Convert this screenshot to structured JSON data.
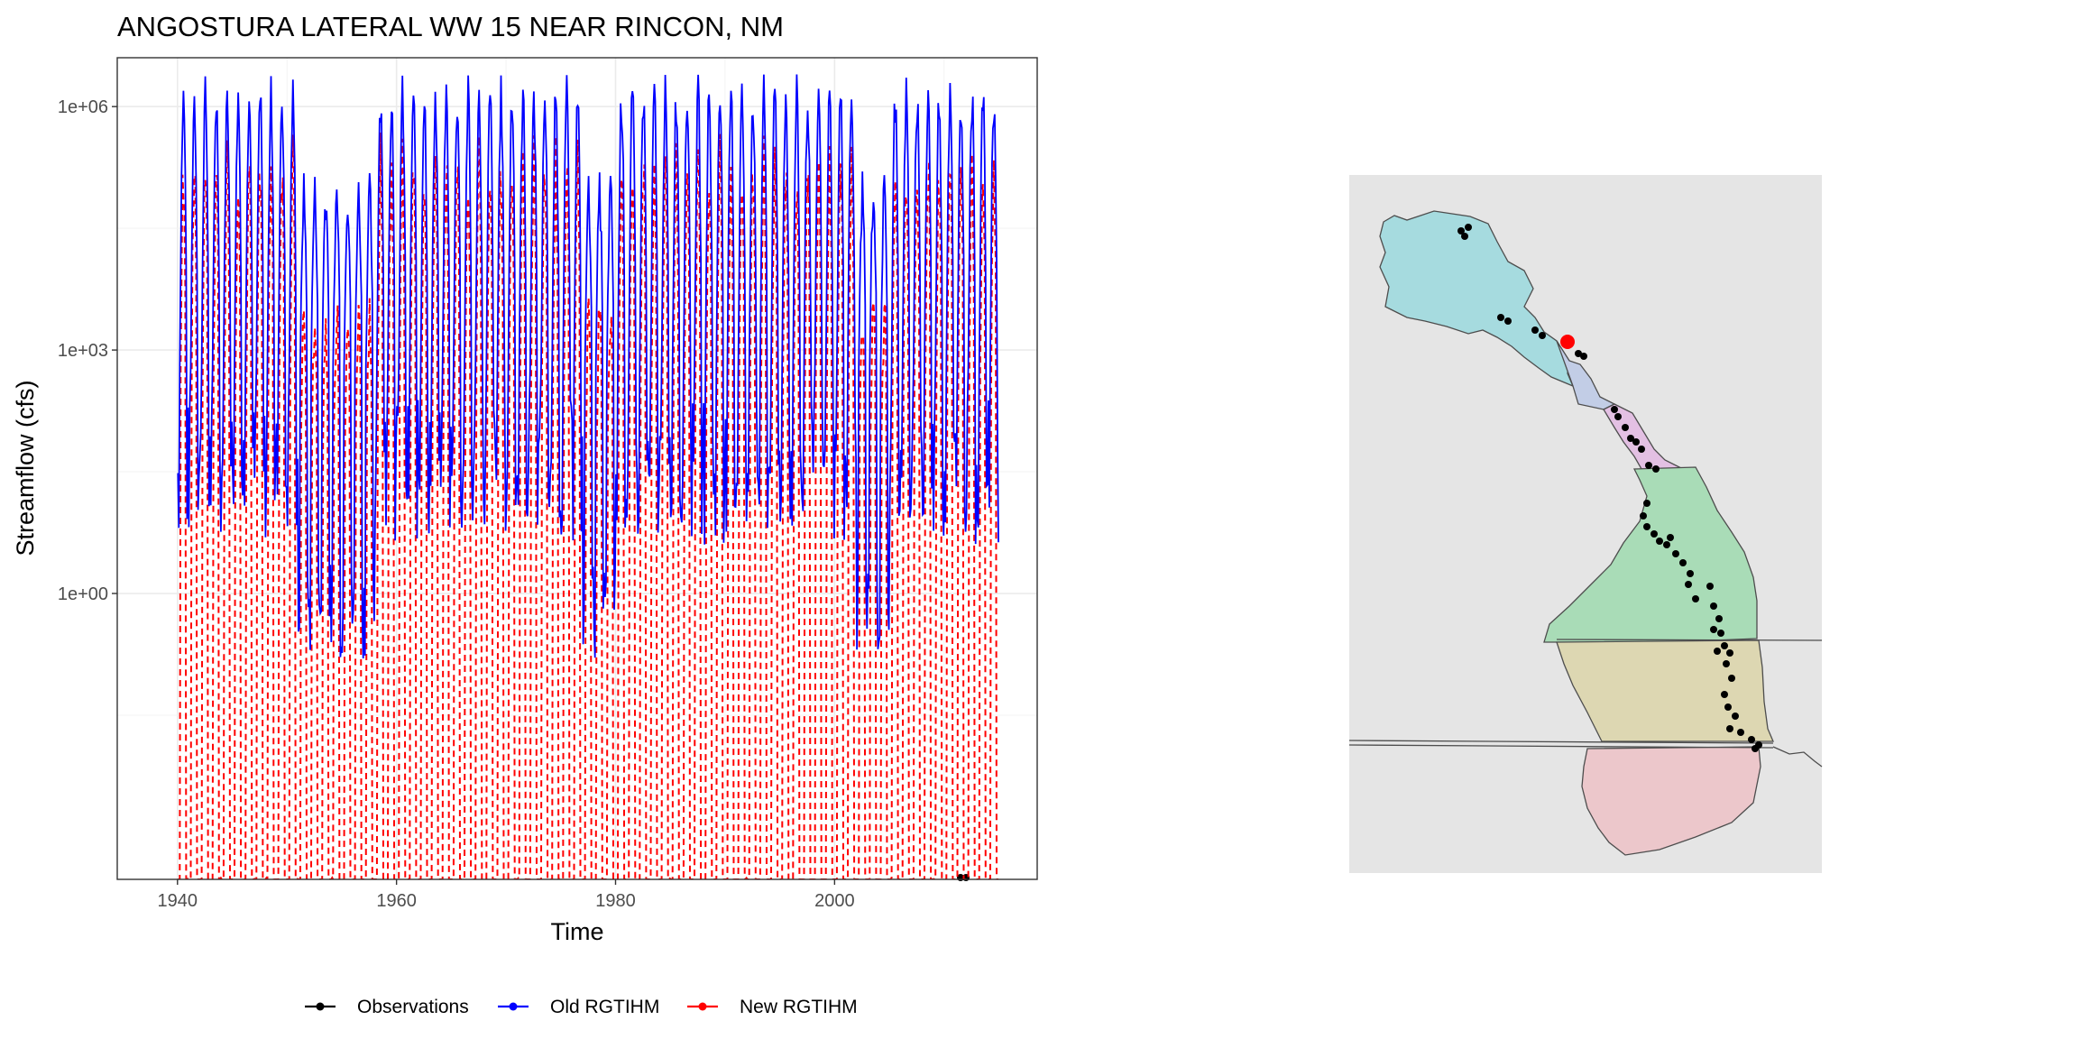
{
  "chart_data": {
    "type": "line",
    "title": "ANGOSTURA LATERAL WW 15 NEAR RINCON, NM",
    "xlabel": "Time",
    "ylabel": "Streamflow (cfs)",
    "x_ticks": [
      "1940",
      "1960",
      "1980",
      "2000"
    ],
    "x_tick_values": [
      1940,
      1960,
      1980,
      2000
    ],
    "xlim": [
      1934.5,
      2018.5
    ],
    "y_scale": "log10",
    "y_ticks": [
      "1e+00",
      "1e+03",
      "1e+06"
    ],
    "y_tick_values": [
      1,
      1000,
      1000000
    ],
    "ylim": [
      0.0003,
      4000000
    ],
    "grid": true,
    "legend_position": "bottom",
    "series": [
      {
        "name": "Observations",
        "color": "#000000",
        "style": "solid-with-points",
        "x": [
          2011.5,
          2012.0
        ],
        "y": [
          0.0003,
          0.0003
        ]
      },
      {
        "name": "Old RGTIHM",
        "color": "#0000ff",
        "style": "solid",
        "description_of_pattern": "monthly series, seasonal peaks 1e+05 to 3e+06 cfs, winter lows 0.1 to 500 cfs",
        "x_range": [
          1940,
          2015
        ]
      },
      {
        "name": "New RGTIHM",
        "color": "#ff0000",
        "style": "dashed",
        "x_range": [
          1940,
          2015
        ]
      }
    ],
    "inset_map": {
      "background": "#e5e5e5",
      "zones": [
        {
          "color": "#a6dbdf"
        },
        {
          "color": "#c2cde6"
        },
        {
          "color": "#e3c0e3"
        },
        {
          "color": "#a9dcb7"
        },
        {
          "color": "#ddd7b2"
        },
        {
          "color": "#ecc7cb"
        }
      ],
      "site_color": "#ff0000",
      "point_color": "#000000"
    }
  }
}
